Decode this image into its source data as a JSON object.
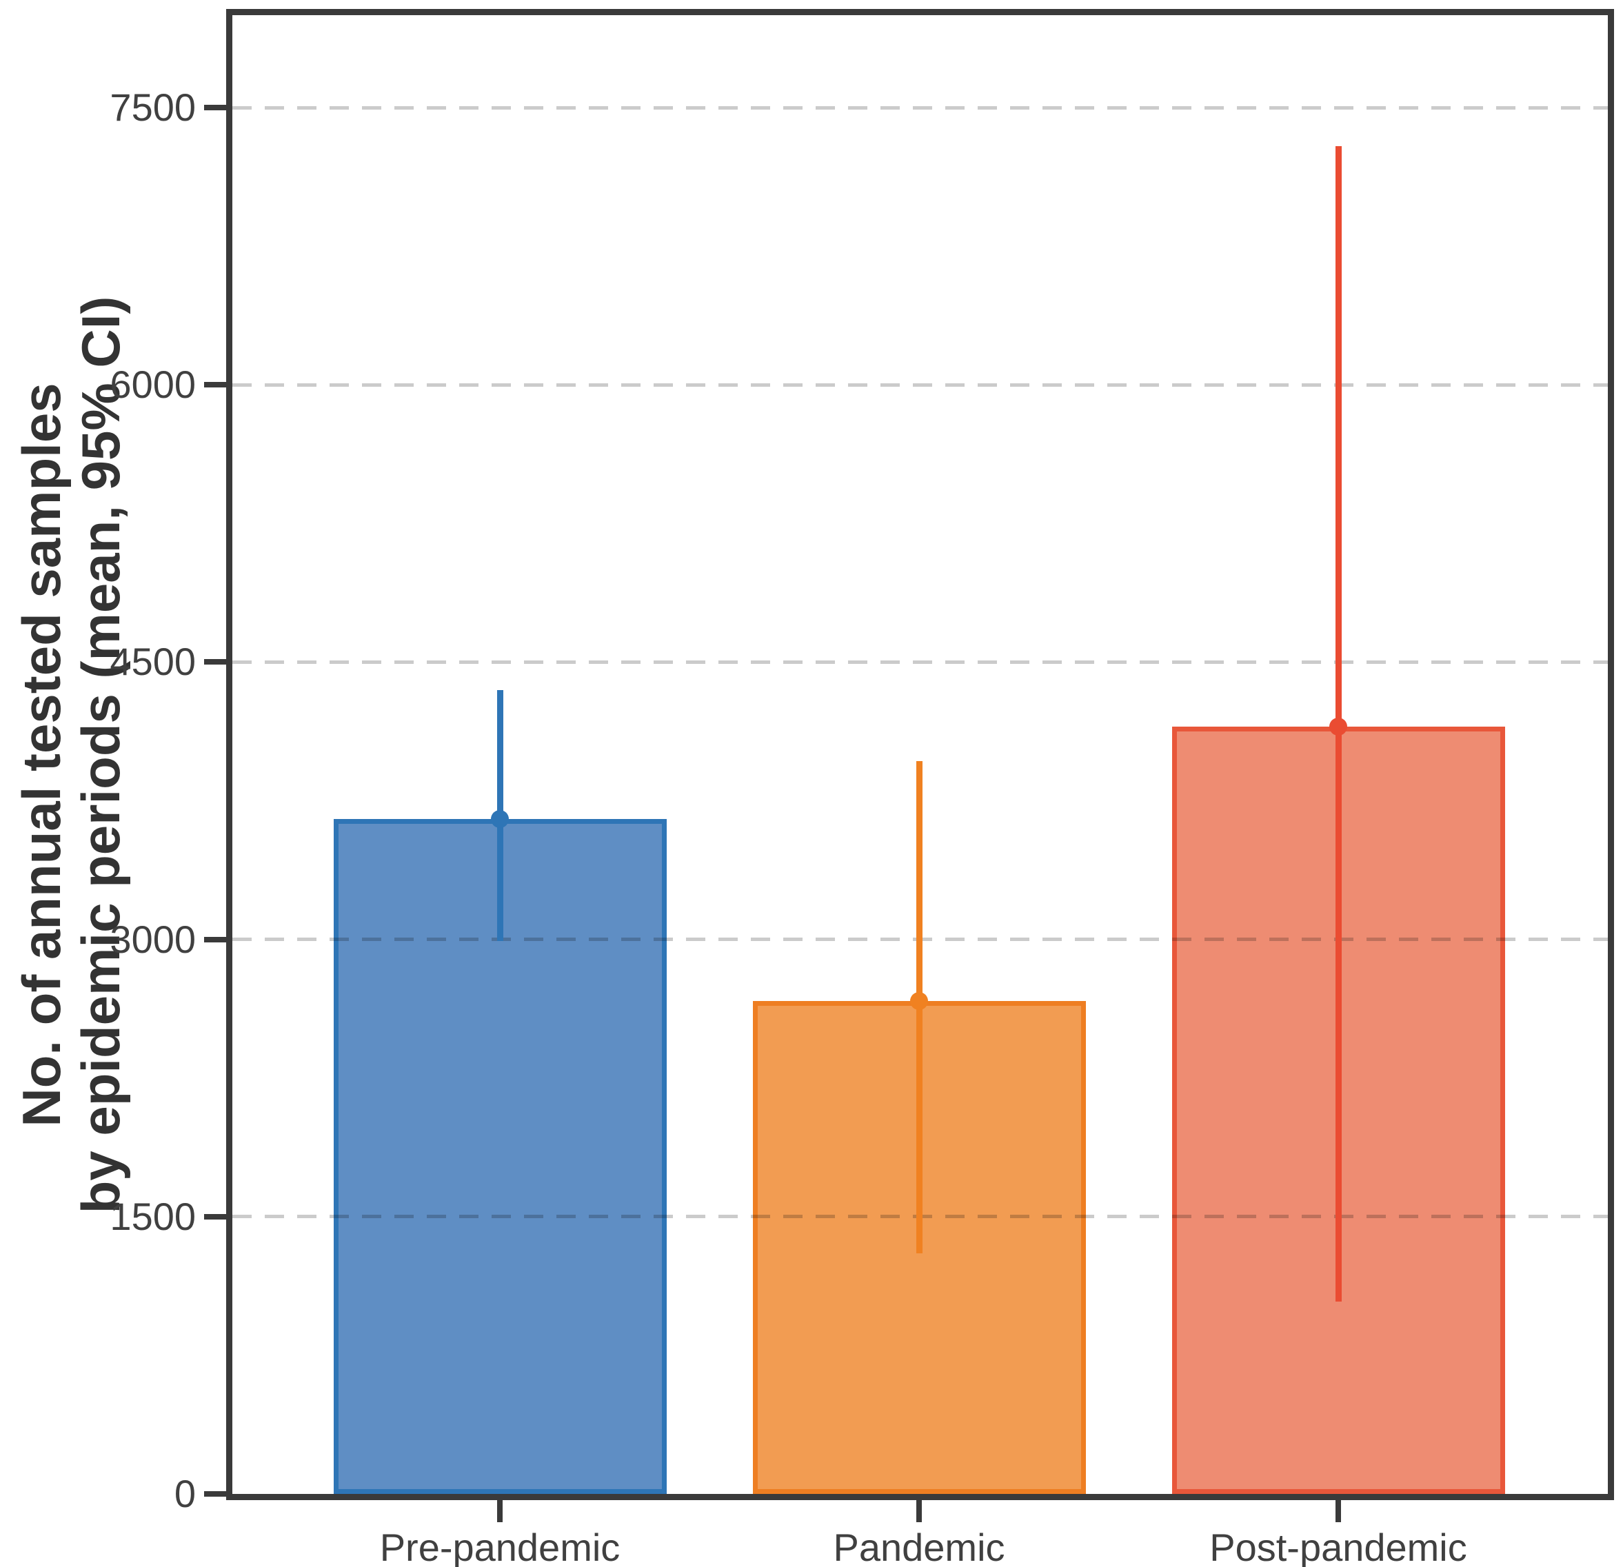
{
  "chart_data": {
    "type": "bar",
    "title": "",
    "xlabel": "",
    "ylabel": "No. of annual tested samples by epidemic periods (mean, 95% CI)",
    "ylabel_lines": [
      "No. of annual tested samples",
      "by epidemic periods (mean, 95% CI)"
    ],
    "categories": [
      "Pre-pandemic",
      "Pandemic",
      "Post-pandemic"
    ],
    "series": [
      {
        "name": "Mean annual tested samples",
        "values": [
          3650,
          2665,
          4150
        ],
        "ci_lower": [
          2990,
          1300,
          1040
        ],
        "ci_upper": [
          4350,
          3965,
          7290
        ]
      }
    ],
    "error_bar_style": "vertical line, no caps, dot marker at mean",
    "ylim": [
      0,
      8000
    ],
    "yticks": [
      0,
      1500,
      3000,
      4500,
      6000,
      7500
    ],
    "grid": "horizontal dashed lines at y ticks above 0",
    "legend": "none",
    "bar_styles": [
      {
        "fill": "#5f8ec4",
        "stroke": "#2e75b6",
        "error": "#2e75b6"
      },
      {
        "fill": "#f29c52",
        "stroke": "#ee7e22",
        "error": "#f08121"
      },
      {
        "fill": "#ee8c72",
        "stroke": "#e8573a",
        "error": "#ea4c32"
      }
    ],
    "colors": {
      "grid": "#cbcbcb",
      "frame": "#3a3a3a",
      "text": "#404040",
      "background": "#ffffff"
    }
  }
}
